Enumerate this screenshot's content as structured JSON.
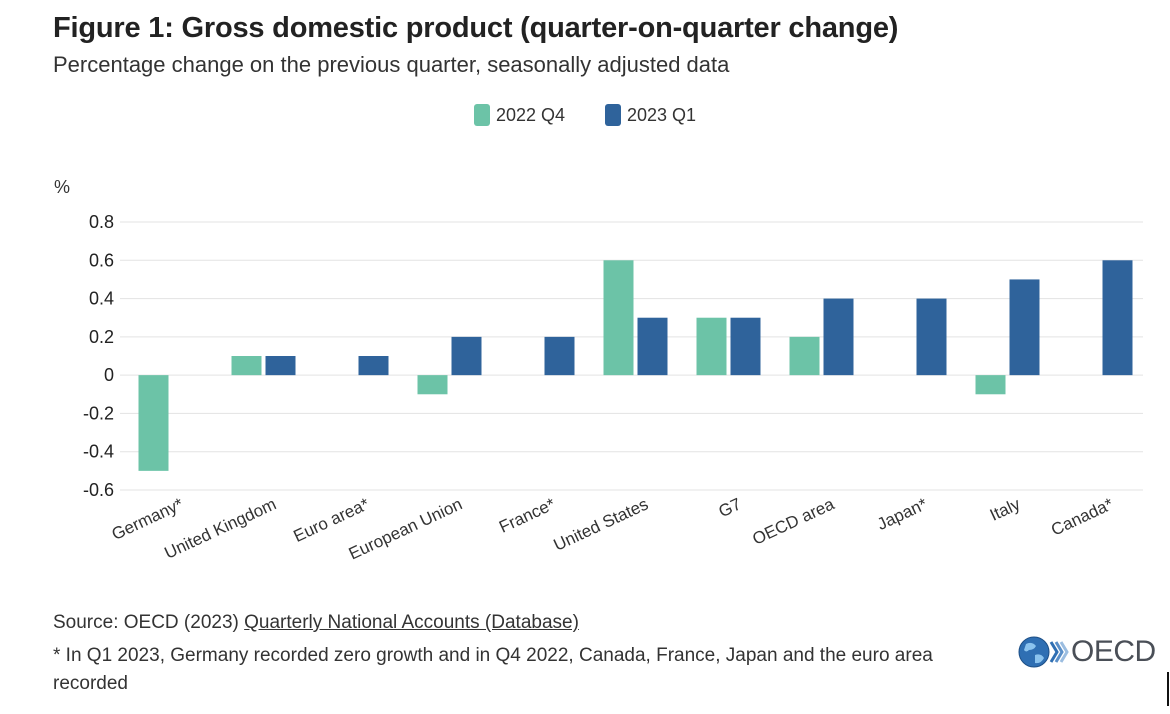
{
  "title": "Figure 1: Gross domestic product (quarter-on-quarter change)",
  "subtitle": "Percentage change on the previous quarter, seasonally adjusted data",
  "legend": [
    {
      "label": "2022 Q4",
      "color": "#6cc3a7"
    },
    {
      "label": "2023 Q1",
      "color": "#2f639b"
    }
  ],
  "source_prefix": "Source: OECD (2023) ",
  "source_link": "Quarterly National Accounts (Database)",
  "note": "* In Q1 2023, Germany recorded zero growth and in Q4 2022, Canada, France, Japan and the euro area recorded",
  "logo_text": "OECD",
  "chart_data": {
    "type": "bar",
    "title": "Figure 1: Gross domestic product (quarter-on-quarter change)",
    "ylabel": "%",
    "ylim": [
      -0.6,
      0.8
    ],
    "yticks": [
      0.8,
      0.6,
      0.4,
      0.2,
      0,
      -0.2,
      -0.4,
      -0.6
    ],
    "ytick_labels": [
      "0.8",
      "0.6",
      "0.4",
      "0.2",
      "0",
      "-0.2",
      "-0.4",
      "-0.6"
    ],
    "grid": true,
    "legend_position": "top-center",
    "categories": [
      "Germany*",
      "United Kingdom",
      "Euro area*",
      "European Union",
      "France*",
      "United States",
      "G7",
      "OECD area",
      "Japan*",
      "Italy",
      "Canada*"
    ],
    "series": [
      {
        "name": "2022 Q4",
        "color": "#6cc3a7",
        "values": [
          -0.5,
          0.1,
          0,
          -0.1,
          0,
          0.6,
          0.3,
          0.2,
          0,
          -0.1,
          0
        ]
      },
      {
        "name": "2023 Q1",
        "color": "#2f639b",
        "values": [
          0,
          0.1,
          0.1,
          0.2,
          0.2,
          0.3,
          0.3,
          0.4,
          0.4,
          0.5,
          0.6
        ]
      }
    ]
  }
}
